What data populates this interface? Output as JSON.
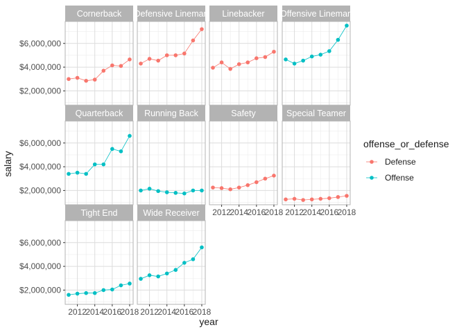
{
  "chart_data": {
    "type": "line",
    "facet_by": "position",
    "facet_ncol": 4,
    "xlabel": "year",
    "ylabel": "salary",
    "x_ticks": [
      2012,
      2014,
      2016,
      2018
    ],
    "x_tick_labels": [
      "2012",
      "2014",
      "2016",
      "2018"
    ],
    "xlim": [
      2010.6,
      2018.4
    ],
    "y_ticks": [
      2000000,
      4000000,
      6000000
    ],
    "y_tick_labels": [
      "$2,000,000",
      "$4,000,000",
      "$6,000,000"
    ],
    "ylim": [
      800000,
      7850000
    ],
    "grid": true,
    "legend": {
      "title": "offense_or_defense",
      "placement": "right",
      "entries": [
        {
          "label": "Defense",
          "color": "#F8766D"
        },
        {
          "label": "Offense",
          "color": "#00BFC4"
        }
      ]
    },
    "panels": [
      {
        "title": "Cornerback",
        "group": "Defense",
        "x": [
          2011,
          2012,
          2013,
          2014,
          2015,
          2016,
          2017,
          2018
        ],
        "values": [
          3000000,
          3100000,
          2850000,
          2950000,
          3700000,
          4150000,
          4100000,
          4650000
        ]
      },
      {
        "title": "Defensive Lineman",
        "group": "Defense",
        "x": [
          2011,
          2012,
          2013,
          2014,
          2015,
          2016,
          2017,
          2018
        ],
        "values": [
          4300000,
          4700000,
          4550000,
          5000000,
          5000000,
          5150000,
          6250000,
          7200000
        ]
      },
      {
        "title": "Linebacker",
        "group": "Defense",
        "x": [
          2011,
          2012,
          2013,
          2014,
          2015,
          2016,
          2017,
          2018
        ],
        "values": [
          3950000,
          4400000,
          3850000,
          4250000,
          4400000,
          4750000,
          4850000,
          5300000
        ]
      },
      {
        "title": "Offensive Lineman",
        "group": "Offense",
        "x": [
          2011,
          2012,
          2013,
          2014,
          2015,
          2016,
          2017,
          2018
        ],
        "values": [
          4650000,
          4300000,
          4550000,
          4900000,
          5050000,
          5350000,
          6300000,
          7500000
        ]
      },
      {
        "title": "Quarterback",
        "group": "Offense",
        "x": [
          2011,
          2012,
          2013,
          2014,
          2015,
          2016,
          2017,
          2018
        ],
        "values": [
          3400000,
          3500000,
          3400000,
          4200000,
          4200000,
          5500000,
          5300000,
          6600000
        ]
      },
      {
        "title": "Running Back",
        "group": "Offense",
        "x": [
          2011,
          2012,
          2013,
          2014,
          2015,
          2016,
          2017,
          2018
        ],
        "values": [
          2000000,
          2150000,
          1950000,
          1850000,
          1800000,
          1750000,
          2000000,
          2000000
        ]
      },
      {
        "title": "Safety",
        "group": "Defense",
        "x": [
          2011,
          2012,
          2013,
          2014,
          2015,
          2016,
          2017,
          2018
        ],
        "values": [
          2250000,
          2200000,
          2100000,
          2250000,
          2450000,
          2700000,
          3000000,
          3250000
        ]
      },
      {
        "title": "Special Teamer",
        "group": "Defense",
        "x": [
          2011,
          2012,
          2013,
          2014,
          2015,
          2016,
          2017,
          2018
        ],
        "values": [
          1250000,
          1300000,
          1200000,
          1250000,
          1300000,
          1350000,
          1450000,
          1550000
        ]
      },
      {
        "title": "Tight End",
        "group": "Offense",
        "x": [
          2011,
          2012,
          2013,
          2014,
          2015,
          2016,
          2017,
          2018
        ],
        "values": [
          1600000,
          1700000,
          1750000,
          1750000,
          2000000,
          2050000,
          2400000,
          2550000
        ]
      },
      {
        "title": "Wide Receiver",
        "group": "Offense",
        "x": [
          2011,
          2012,
          2013,
          2014,
          2015,
          2016,
          2017,
          2018
        ],
        "values": [
          2950000,
          3250000,
          3150000,
          3400000,
          3700000,
          4300000,
          4600000,
          5600000
        ]
      }
    ]
  }
}
